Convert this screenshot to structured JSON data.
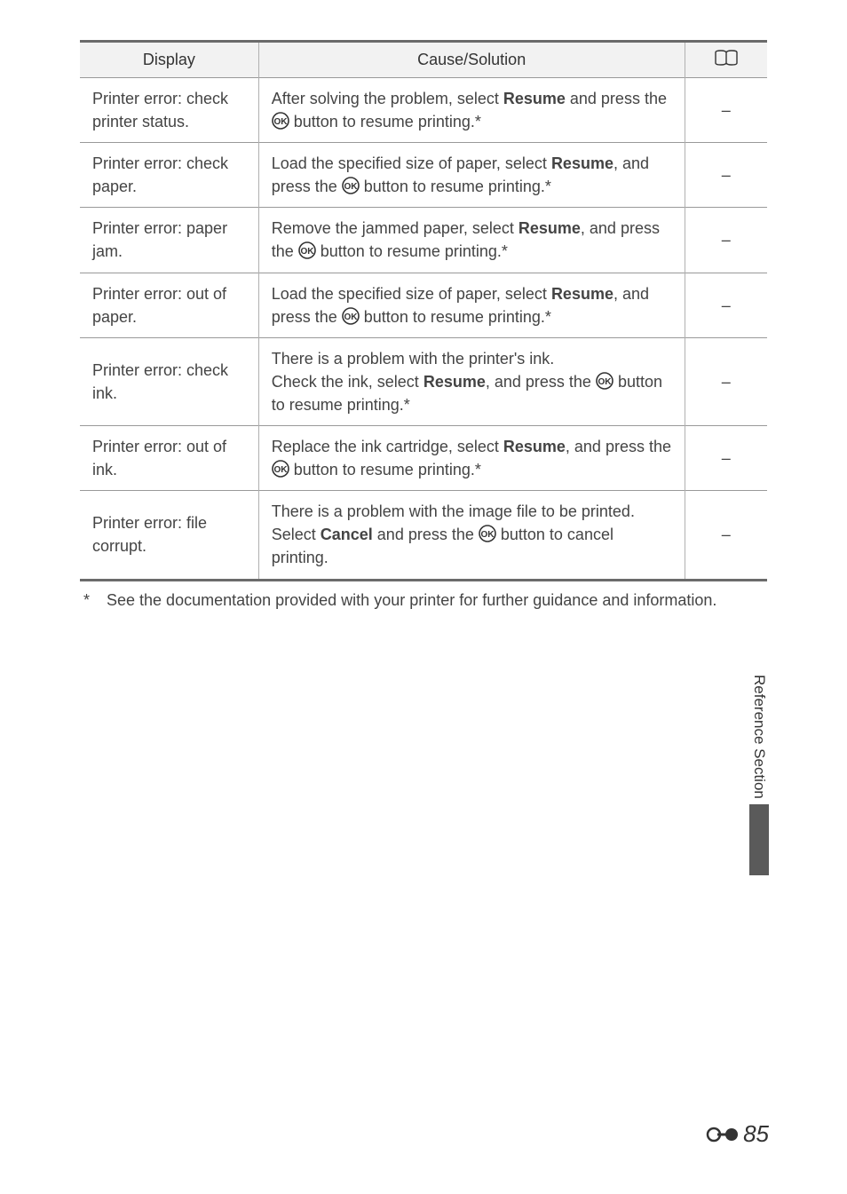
{
  "table": {
    "headers": {
      "display": "Display",
      "cause": "Cause/Solution"
    },
    "rows": [
      {
        "display": "Printer error: check printer status.",
        "cause_pre": "After solving the problem, select ",
        "cause_bold": "Resume",
        "cause_mid": " and press the ",
        "cause_post": " button to resume printing.*",
        "ref": "–"
      },
      {
        "display": "Printer error: check paper.",
        "cause_pre": "Load the specified size of paper, select ",
        "cause_bold": "Resume",
        "cause_mid": ", and press the ",
        "cause_post": " button to resume printing.*",
        "ref": "–"
      },
      {
        "display": "Printer error: paper jam.",
        "cause_pre": "Remove the jammed paper, select ",
        "cause_bold": "Resume",
        "cause_mid": ", and press the ",
        "cause_post": " button to resume printing.*",
        "ref": "–"
      },
      {
        "display": "Printer error: out of paper.",
        "cause_pre": "Load the specified size of paper, select ",
        "cause_bold": "Resume",
        "cause_mid": ", and press the ",
        "cause_post": " button to resume printing.*",
        "ref": "–"
      },
      {
        "display": "Printer error: check ink.",
        "cause_line1": "There is a problem with the printer's ink.",
        "cause_pre": "Check the ink, select ",
        "cause_bold": "Resume",
        "cause_mid": ", and press the ",
        "cause_post": " button to resume printing.*",
        "ref": "–"
      },
      {
        "display": "Printer error: out of ink.",
        "cause_pre": "Replace the ink cartridge, select ",
        "cause_bold": "Resume",
        "cause_mid": ", and press the ",
        "cause_post": " button to resume printing.*",
        "ref": "–"
      },
      {
        "display": "Printer error: file corrupt.",
        "cause_line1": "There is a problem with the image file to be printed.",
        "cause_pre": "Select ",
        "cause_bold": "Cancel",
        "cause_mid": " and press the ",
        "cause_post": " button to cancel printing.",
        "ref": "–"
      }
    ]
  },
  "footnote": {
    "mark": "*",
    "text": "See the documentation provided with your printer for further guidance and information."
  },
  "side_tab": {
    "label": "Reference Section"
  },
  "footer": {
    "page_number": "85"
  },
  "colors": {
    "header_bg": "#f2f2f2",
    "border_heavy": "#6b6b6b",
    "border_light": "#999999",
    "side_block": "#5a5a5a",
    "text": "#333333"
  }
}
